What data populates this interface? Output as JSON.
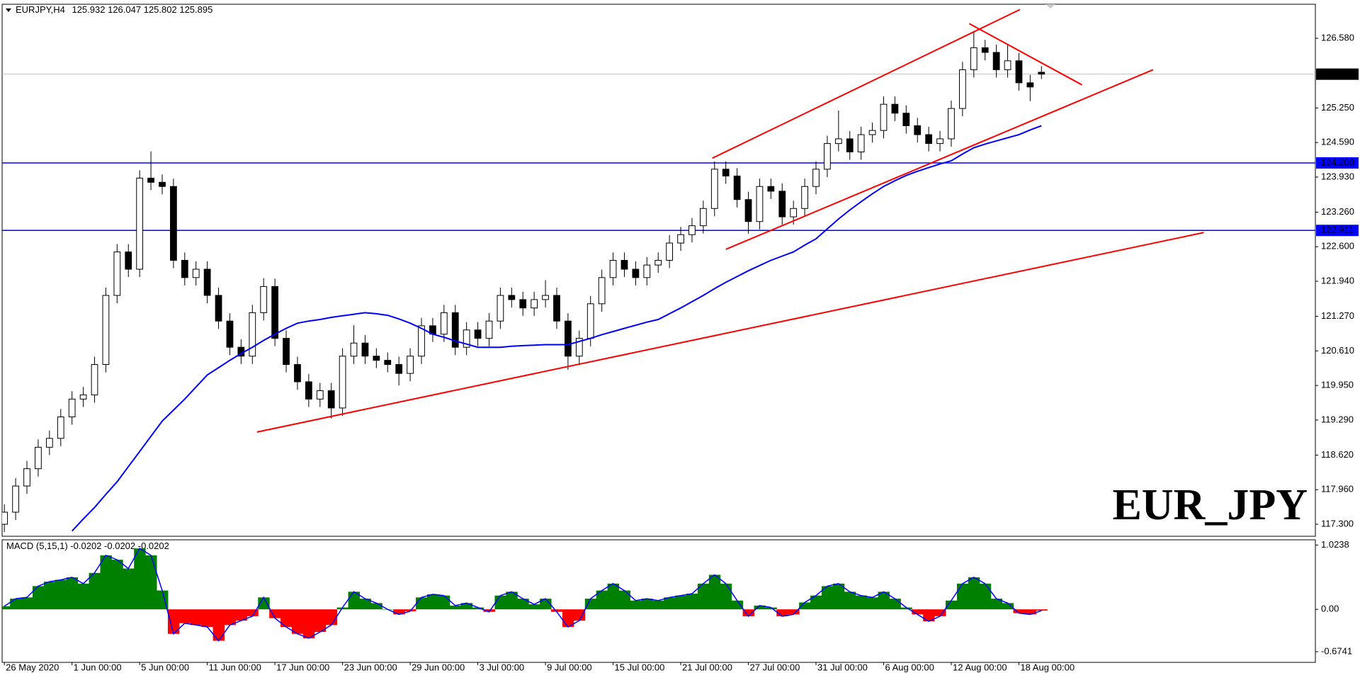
{
  "chart_data": {
    "type": "candlestick",
    "symbol": "EURJPY,H4",
    "categories": [
      "26 May 2020",
      null,
      null,
      null,
      null,
      null,
      "1 Jun 00:00",
      null,
      null,
      null,
      null,
      null,
      "5 Jun 00:00",
      null,
      null,
      null,
      null,
      null,
      "11 Jun 00:00",
      null,
      null,
      null,
      null,
      null,
      "17 Jun 00:00",
      null,
      null,
      null,
      null,
      null,
      "23 Jun 00:00",
      null,
      null,
      null,
      null,
      null,
      "29 Jun 00:00",
      null,
      null,
      null,
      null,
      null,
      "3 Jul 00:00",
      null,
      null,
      null,
      null,
      null,
      "9 Jul 00:00",
      null,
      null,
      null,
      null,
      null,
      "15 Jul 00:00",
      null,
      null,
      null,
      null,
      null,
      "21 Jul 00:00",
      null,
      null,
      null,
      null,
      null,
      "27 Jul 00:00",
      null,
      null,
      null,
      null,
      null,
      "31 Jul 00:00",
      null,
      null,
      null,
      null,
      null,
      "6 Aug 00:00",
      null,
      null,
      null,
      null,
      null,
      "12 Aug 00:00",
      null,
      null,
      null,
      null,
      null,
      "18 Aug 00:00",
      null,
      null
    ],
    "open": [
      117.3,
      117.53,
      118.03,
      118.36,
      118.77,
      118.94,
      119.35,
      119.69,
      119.77,
      120.35,
      121.67,
      122.5,
      122.17,
      123.91,
      123.83,
      123.75,
      122.34,
      122.01,
      122.17,
      121.67,
      121.18,
      120.68,
      120.51,
      121.34,
      121.84,
      120.85,
      120.35,
      120.02,
      119.69,
      119.85,
      119.52,
      120.51,
      120.76,
      120.51,
      120.43,
      120.35,
      120.18,
      120.51,
      121.09,
      120.93,
      121.34,
      120.68,
      121.01,
      120.85,
      121.18,
      121.67,
      121.59,
      121.43,
      121.59,
      121.67,
      121.18,
      120.51,
      120.85,
      121.51,
      122.01,
      122.34,
      122.17,
      122.01,
      122.25,
      122.34,
      122.67,
      122.83,
      123.0,
      123.33,
      124.08,
      123.95,
      123.5,
      123.08,
      123.75,
      123.66,
      123.17,
      123.33,
      123.75,
      124.08,
      124.57,
      124.66,
      124.41,
      124.74,
      124.82,
      125.32,
      125.15,
      124.91,
      124.74,
      124.57,
      124.66,
      125.24,
      125.98,
      126.4,
      126.31,
      125.98,
      126.15,
      125.73,
      125.932
    ],
    "high": [
      117.68,
      118.18,
      118.51,
      118.92,
      119.09,
      119.5,
      119.84,
      119.92,
      120.5,
      121.82,
      122.65,
      122.65,
      124.06,
      124.42,
      123.98,
      123.9,
      122.49,
      122.32,
      122.32,
      121.82,
      121.33,
      120.83,
      121.49,
      122.0,
      121.99,
      121.0,
      120.5,
      120.17,
      120.0,
      120.0,
      120.66,
      121.1,
      120.91,
      120.66,
      120.58,
      120.5,
      120.66,
      121.24,
      121.24,
      121.49,
      121.49,
      121.16,
      121.16,
      121.33,
      121.82,
      121.82,
      121.74,
      121.74,
      121.96,
      121.82,
      121.33,
      121.0,
      121.66,
      122.16,
      122.49,
      122.49,
      122.32,
      122.4,
      122.49,
      122.82,
      122.98,
      123.15,
      123.48,
      124.23,
      124.23,
      124.1,
      123.65,
      123.9,
      123.9,
      123.81,
      123.48,
      123.9,
      124.23,
      124.72,
      125.2,
      124.81,
      124.89,
      124.97,
      125.47,
      125.47,
      125.3,
      125.06,
      124.89,
      124.81,
      125.39,
      126.13,
      126.72,
      126.55,
      126.46,
      126.45,
      126.3,
      125.88,
      126.047
    ],
    "low": [
      117.15,
      117.38,
      117.88,
      118.21,
      118.62,
      118.79,
      119.2,
      119.54,
      119.62,
      120.2,
      121.52,
      122.02,
      122.02,
      123.68,
      123.6,
      122.19,
      121.86,
      121.86,
      121.52,
      121.03,
      120.53,
      120.36,
      120.36,
      121.19,
      120.7,
      120.2,
      119.87,
      119.54,
      119.54,
      119.32,
      119.37,
      120.36,
      120.36,
      120.28,
      120.2,
      119.95,
      120.03,
      120.36,
      120.78,
      120.78,
      120.53,
      120.53,
      120.7,
      120.7,
      121.03,
      121.44,
      121.28,
      121.28,
      121.44,
      121.03,
      120.25,
      120.36,
      120.7,
      121.36,
      121.86,
      122.02,
      121.86,
      121.86,
      122.1,
      122.19,
      122.52,
      122.68,
      122.85,
      123.18,
      123.8,
      123.35,
      122.85,
      122.93,
      123.51,
      123.02,
      123.02,
      123.18,
      123.6,
      123.93,
      124.42,
      124.26,
      124.26,
      124.59,
      124.67,
      125.0,
      124.76,
      124.59,
      124.42,
      124.42,
      124.51,
      125.09,
      125.83,
      126.16,
      125.83,
      125.83,
      125.58,
      125.38,
      125.802
    ],
    "close": [
      117.53,
      118.03,
      118.36,
      118.77,
      118.94,
      119.35,
      119.69,
      119.77,
      120.35,
      121.67,
      122.5,
      122.17,
      123.91,
      123.83,
      123.75,
      122.34,
      122.01,
      122.17,
      121.67,
      121.18,
      120.68,
      120.51,
      121.34,
      121.84,
      120.85,
      120.35,
      120.02,
      119.69,
      119.85,
      119.52,
      120.51,
      120.76,
      120.51,
      120.43,
      120.35,
      120.18,
      120.51,
      121.09,
      120.93,
      121.34,
      120.68,
      121.01,
      120.85,
      121.18,
      121.67,
      121.59,
      121.43,
      121.59,
      121.67,
      121.18,
      120.51,
      120.85,
      121.51,
      122.01,
      122.34,
      122.17,
      122.01,
      122.25,
      122.34,
      122.67,
      122.83,
      123.0,
      123.33,
      124.08,
      123.95,
      123.5,
      123.08,
      123.75,
      123.66,
      123.17,
      123.33,
      123.75,
      124.08,
      124.57,
      124.66,
      124.41,
      124.74,
      124.82,
      125.32,
      125.15,
      124.91,
      124.74,
      124.57,
      124.66,
      125.24,
      125.98,
      126.4,
      126.31,
      125.98,
      126.15,
      125.73,
      125.65,
      125.895
    ],
    "color_up": "#ffffff",
    "color_down": "#000000",
    "xlim": [
      -0.2,
      116.3
    ],
    "ylim": [
      117.07,
      127.23
    ],
    "yticks": [
      {
        "value": 126.58,
        "label": "126.580"
      },
      {
        "value": 125.25,
        "label": "125.250"
      },
      {
        "value": 124.59,
        "label": "124.590"
      },
      {
        "value": 123.93,
        "label": "123.930"
      },
      {
        "value": 123.26,
        "label": "123.260"
      },
      {
        "value": 122.6,
        "label": "122.600"
      },
      {
        "value": 121.94,
        "label": "121.940"
      },
      {
        "value": 121.27,
        "label": "121.270"
      },
      {
        "value": 120.61,
        "label": "120.610"
      },
      {
        "value": 119.95,
        "label": "119.950"
      },
      {
        "value": 119.29,
        "label": "119.290"
      },
      {
        "value": 118.62,
        "label": "118.620"
      },
      {
        "value": 117.96,
        "label": "117.960"
      },
      {
        "value": 117.3,
        "label": "117.300"
      }
    ],
    "moving_average": {
      "color": "#0000ff",
      "values": [
        null,
        null,
        null,
        null,
        null,
        null,
        117.17,
        117.4,
        117.62,
        117.87,
        118.11,
        118.4,
        118.69,
        118.98,
        119.27,
        119.48,
        119.69,
        119.92,
        120.15,
        120.29,
        120.43,
        120.56,
        120.68,
        120.81,
        120.93,
        121.04,
        121.14,
        121.18,
        121.21,
        121.25,
        121.28,
        121.31,
        121.34,
        121.32,
        121.29,
        121.22,
        121.14,
        121.04,
        120.93,
        120.87,
        120.8,
        120.74,
        120.68,
        120.68,
        120.68,
        120.7,
        120.71,
        120.72,
        120.73,
        120.73,
        120.73,
        120.79,
        120.85,
        120.92,
        120.98,
        121.04,
        121.1,
        121.16,
        121.21,
        121.32,
        121.43,
        121.55,
        121.67,
        121.8,
        121.92,
        122.03,
        122.14,
        122.24,
        122.34,
        122.42,
        122.5,
        122.63,
        122.75,
        122.94,
        123.13,
        123.3,
        123.46,
        123.61,
        123.75,
        123.86,
        123.96,
        124.04,
        124.11,
        124.18,
        124.24,
        124.37,
        124.49,
        124.56,
        124.62,
        124.68,
        124.74,
        124.83,
        124.91
      ]
    },
    "levels": [
      {
        "value": 124.2,
        "label": "124.200",
        "color": "#0000ff"
      },
      {
        "value": 122.911,
        "label": "122.911",
        "color": "#0000ff"
      }
    ],
    "price_line_color": "#c0c0c0",
    "trendline_color": "#ff0000",
    "trendlines": [
      {
        "x": [
          22.4,
          106.4
        ],
        "y": [
          119.06,
          122.87
        ]
      },
      {
        "x": [
          62.8,
          90.1
        ],
        "y": [
          124.29,
          127.13
        ]
      },
      {
        "x": [
          64,
          101.9
        ],
        "y": [
          122.55,
          125.98
        ]
      },
      {
        "x": [
          85.6,
          95.6
        ],
        "y": [
          126.86,
          125.69
        ]
      }
    ],
    "watermark": "EUR_JPY",
    "watermark_color": "#c00000",
    "macd": {
      "label": "MACD (5,15,1)",
      "color_pos": "#008000",
      "color_neg": "#ff0000",
      "line_color": "#0000ff",
      "ylim": [
        -0.844,
        1.107
      ],
      "yticks": [
        1.0238,
        {
          "value": 0,
          "label": "0.00"
        },
        -0.6741
      ],
      "values": [
        0.05,
        0.17,
        0.19,
        0.37,
        0.44,
        0.47,
        0.51,
        0.41,
        0.58,
        0.86,
        0.79,
        0.65,
        0.97,
        0.86,
        0.3,
        -0.39,
        -0.22,
        -0.25,
        -0.28,
        -0.5,
        -0.25,
        -0.18,
        -0.11,
        0.19,
        -0.14,
        -0.28,
        -0.39,
        -0.46,
        -0.36,
        -0.25,
        0.03,
        0.28,
        0.17,
        0.1,
        0,
        -0.08,
        -0.03,
        0.19,
        0.24,
        0.22,
        0.06,
        0.1,
        0.03,
        -0.04,
        0.22,
        0.28,
        0.17,
        0.08,
        0.17,
        -0.04,
        -0.28,
        -0.18,
        0.17,
        0.3,
        0.41,
        0.3,
        0.14,
        0.17,
        0.14,
        0.19,
        0.22,
        0.25,
        0.41,
        0.55,
        0.41,
        0.14,
        -0.11,
        0.06,
        0.03,
        -0.11,
        -0.08,
        0.11,
        0.22,
        0.37,
        0.41,
        0.28,
        0.22,
        0.19,
        0.28,
        0.17,
        0.03,
        -0.08,
        -0.19,
        -0.11,
        0.14,
        0.41,
        0.51,
        0.41,
        0.17,
        0.1,
        -0.06,
        -0.08,
        -0.0202
      ]
    }
  }
}
